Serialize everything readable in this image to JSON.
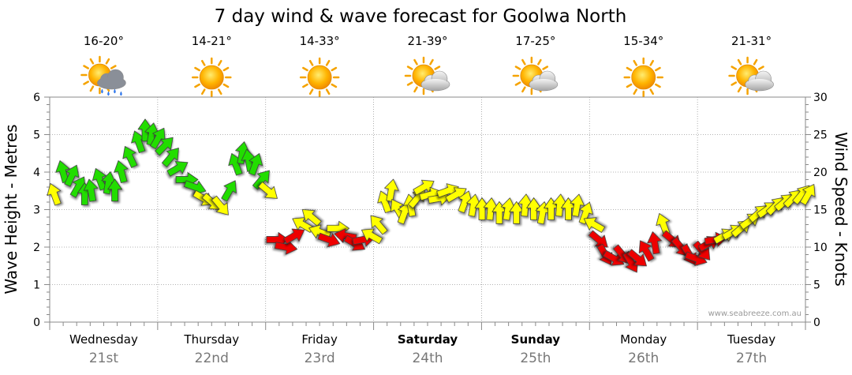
{
  "title": "7 day wind & wave forecast for Goolwa North",
  "watermark": "www.seabreeze.com.au",
  "days": [
    {
      "name": "Wednesday",
      "date": "21st",
      "temp": "16-20°",
      "icon": "sun-cloud-rain-icon",
      "bold": false
    },
    {
      "name": "Thursday",
      "date": "22nd",
      "temp": "14-21°",
      "icon": "sun-icon",
      "bold": false
    },
    {
      "name": "Friday",
      "date": "23rd",
      "temp": "14-33°",
      "icon": "sun-icon",
      "bold": false
    },
    {
      "name": "Saturday",
      "date": "24th",
      "temp": "21-39°",
      "icon": "sun-cloud-icon",
      "bold": true
    },
    {
      "name": "Sunday",
      "date": "25th",
      "temp": "17-25°",
      "icon": "sun-cloud-icon",
      "bold": true
    },
    {
      "name": "Monday",
      "date": "26th",
      "temp": "15-34°",
      "icon": "sun-icon",
      "bold": false
    },
    {
      "name": "Tuesday",
      "date": "27th",
      "temp": "21-31°",
      "icon": "sun-cloud-icon",
      "bold": false
    }
  ],
  "chart_data": {
    "type": "scatter",
    "title": "7 day wind & wave forecast for Goolwa North",
    "left_axis": {
      "label": "Wave Height - Metres",
      "min": 0,
      "max": 6,
      "ticks": [
        0,
        1,
        2,
        3,
        4,
        5,
        6
      ]
    },
    "right_axis": {
      "label": "Wind Speed - Knots",
      "min": 0,
      "max": 30,
      "ticks": [
        0,
        5,
        10,
        15,
        20,
        25,
        30
      ]
    },
    "grid": true,
    "legend": "none",
    "colors": {
      "green": "#22dd00",
      "yellow": "#ffff00",
      "red": "#ee0000"
    },
    "series": [
      {
        "name": "",
        "unit": "knots",
        "points": [
          {
            "day": 0.0,
            "speed": 17.0,
            "dir": -20,
            "color": "yellow"
          },
          {
            "day": 0.08,
            "speed": 20.0,
            "dir": -15,
            "color": "green"
          },
          {
            "day": 0.16,
            "speed": 19.5,
            "dir": 25,
            "color": "green"
          },
          {
            "day": 0.22,
            "speed": 18.0,
            "dir": 30,
            "color": "green"
          },
          {
            "day": 0.28,
            "speed": 17.0,
            "dir": 0,
            "color": "green"
          },
          {
            "day": 0.34,
            "speed": 17.5,
            "dir": -10,
            "color": "green"
          },
          {
            "day": 0.42,
            "speed": 19.0,
            "dir": -20,
            "color": "green"
          },
          {
            "day": 0.5,
            "speed": 18.5,
            "dir": 10,
            "color": "green"
          },
          {
            "day": 0.56,
            "speed": 17.5,
            "dir": 0,
            "color": "green"
          },
          {
            "day": 0.62,
            "speed": 20.0,
            "dir": -15,
            "color": "green"
          },
          {
            "day": 0.7,
            "speed": 22.0,
            "dir": -25,
            "color": "green"
          },
          {
            "day": 0.78,
            "speed": 24.0,
            "dir": -20,
            "color": "green"
          },
          {
            "day": 0.84,
            "speed": 25.5,
            "dir": 0,
            "color": "green"
          },
          {
            "day": 0.9,
            "speed": 25.0,
            "dir": 10,
            "color": "green"
          },
          {
            "day": 0.96,
            "speed": 24.5,
            "dir": 30,
            "color": "green"
          },
          {
            "day": 1.02,
            "speed": 23.5,
            "dir": 45,
            "color": "green"
          },
          {
            "day": 1.08,
            "speed": 22.0,
            "dir": 40,
            "color": "green"
          },
          {
            "day": 1.14,
            "speed": 20.5,
            "dir": 60,
            "color": "green"
          },
          {
            "day": 1.22,
            "speed": 19.0,
            "dir": 90,
            "color": "green"
          },
          {
            "day": 1.3,
            "speed": 18.0,
            "dir": 110,
            "color": "green"
          },
          {
            "day": 1.38,
            "speed": 16.5,
            "dir": 120,
            "color": "yellow"
          },
          {
            "day": 1.46,
            "speed": 16.0,
            "dir": 130,
            "color": "yellow"
          },
          {
            "day": 1.54,
            "speed": 15.5,
            "dir": 140,
            "color": "yellow"
          },
          {
            "day": 1.62,
            "speed": 17.5,
            "dir": 30,
            "color": "green"
          },
          {
            "day": 1.68,
            "speed": 21.0,
            "dir": -20,
            "color": "green"
          },
          {
            "day": 1.74,
            "speed": 22.5,
            "dir": 10,
            "color": "green"
          },
          {
            "day": 1.8,
            "speed": 21.5,
            "dir": -10,
            "color": "green"
          },
          {
            "day": 1.86,
            "speed": 21.0,
            "dir": 20,
            "color": "green"
          },
          {
            "day": 1.92,
            "speed": 19.0,
            "dir": 40,
            "color": "green"
          },
          {
            "day": 1.98,
            "speed": 17.5,
            "dir": 130,
            "color": "yellow"
          },
          {
            "day": 2.06,
            "speed": 11.0,
            "dir": 90,
            "color": "red"
          },
          {
            "day": 2.14,
            "speed": 10.0,
            "dir": 100,
            "color": "red"
          },
          {
            "day": 2.22,
            "speed": 11.5,
            "dir": 60,
            "color": "red"
          },
          {
            "day": 2.3,
            "speed": 13.0,
            "dir": -60,
            "color": "yellow"
          },
          {
            "day": 2.38,
            "speed": 14.0,
            "dir": -50,
            "color": "yellow"
          },
          {
            "day": 2.46,
            "speed": 12.0,
            "dir": -70,
            "color": "yellow"
          },
          {
            "day": 2.54,
            "speed": 11.0,
            "dir": 110,
            "color": "red"
          },
          {
            "day": 2.62,
            "speed": 12.5,
            "dir": 90,
            "color": "yellow"
          },
          {
            "day": 2.7,
            "speed": 11.5,
            "dir": -80,
            "color": "red"
          },
          {
            "day": 2.78,
            "speed": 10.5,
            "dir": 120,
            "color": "red"
          },
          {
            "day": 2.86,
            "speed": 11.0,
            "dir": 80,
            "color": "red"
          },
          {
            "day": 2.94,
            "speed": 11.5,
            "dir": -60,
            "color": "yellow"
          },
          {
            "day": 3.0,
            "speed": 13.0,
            "dir": -40,
            "color": "yellow"
          },
          {
            "day": 3.06,
            "speed": 16.0,
            "dir": -20,
            "color": "yellow"
          },
          {
            "day": 3.12,
            "speed": 17.5,
            "dir": 10,
            "color": "yellow"
          },
          {
            "day": 3.18,
            "speed": 15.0,
            "dir": -30,
            "color": "yellow"
          },
          {
            "day": 3.24,
            "speed": 14.5,
            "dir": 20,
            "color": "yellow"
          },
          {
            "day": 3.3,
            "speed": 15.5,
            "dir": -10,
            "color": "yellow"
          },
          {
            "day": 3.36,
            "speed": 16.5,
            "dir": 40,
            "color": "yellow"
          },
          {
            "day": 3.42,
            "speed": 18.0,
            "dir": 60,
            "color": "yellow"
          },
          {
            "day": 3.48,
            "speed": 17.0,
            "dir": 75,
            "color": "yellow"
          },
          {
            "day": 3.56,
            "speed": 16.5,
            "dir": 80,
            "color": "yellow"
          },
          {
            "day": 3.64,
            "speed": 17.5,
            "dir": 70,
            "color": "yellow"
          },
          {
            "day": 3.72,
            "speed": 17.0,
            "dir": 60,
            "color": "yellow"
          },
          {
            "day": 3.8,
            "speed": 16.0,
            "dir": 20,
            "color": "yellow"
          },
          {
            "day": 3.88,
            "speed": 15.5,
            "dir": 10,
            "color": "yellow"
          },
          {
            "day": 3.96,
            "speed": 15.0,
            "dir": 0,
            "color": "yellow"
          },
          {
            "day": 4.04,
            "speed": 15.0,
            "dir": 5,
            "color": "yellow"
          },
          {
            "day": 4.12,
            "speed": 14.5,
            "dir": 0,
            "color": "yellow"
          },
          {
            "day": 4.2,
            "speed": 15.0,
            "dir": 10,
            "color": "yellow"
          },
          {
            "day": 4.28,
            "speed": 14.5,
            "dir": 0,
            "color": "yellow"
          },
          {
            "day": 4.36,
            "speed": 15.5,
            "dir": 5,
            "color": "yellow"
          },
          {
            "day": 4.44,
            "speed": 15.0,
            "dir": 0,
            "color": "yellow"
          },
          {
            "day": 4.52,
            "speed": 14.5,
            "dir": 10,
            "color": "yellow"
          },
          {
            "day": 4.6,
            "speed": 15.0,
            "dir": 0,
            "color": "yellow"
          },
          {
            "day": 4.68,
            "speed": 15.5,
            "dir": 5,
            "color": "yellow"
          },
          {
            "day": 4.76,
            "speed": 15.0,
            "dir": 0,
            "color": "yellow"
          },
          {
            "day": 4.84,
            "speed": 15.5,
            "dir": 10,
            "color": "yellow"
          },
          {
            "day": 4.92,
            "speed": 14.5,
            "dir": 20,
            "color": "yellow"
          },
          {
            "day": 5.0,
            "speed": 13.0,
            "dir": -60,
            "color": "yellow"
          },
          {
            "day": 5.04,
            "speed": 11.0,
            "dir": 130,
            "color": "red"
          },
          {
            "day": 5.1,
            "speed": 9.0,
            "dir": 150,
            "color": "red"
          },
          {
            "day": 5.18,
            "speed": 8.5,
            "dir": 120,
            "color": "red"
          },
          {
            "day": 5.26,
            "speed": 9.0,
            "dir": 140,
            "color": "red"
          },
          {
            "day": 5.34,
            "speed": 8.0,
            "dir": 150,
            "color": "red"
          },
          {
            "day": 5.4,
            "speed": 8.5,
            "dir": 130,
            "color": "red"
          },
          {
            "day": 5.48,
            "speed": 9.5,
            "dir": -30,
            "color": "red"
          },
          {
            "day": 5.56,
            "speed": 10.5,
            "dir": -10,
            "color": "red"
          },
          {
            "day": 5.64,
            "speed": 13.0,
            "dir": -20,
            "color": "yellow"
          },
          {
            "day": 5.72,
            "speed": 11.0,
            "dir": 130,
            "color": "red"
          },
          {
            "day": 5.8,
            "speed": 10.0,
            "dir": 140,
            "color": "red"
          },
          {
            "day": 5.88,
            "speed": 9.0,
            "dir": 150,
            "color": "red"
          },
          {
            "day": 5.94,
            "speed": 8.5,
            "dir": 110,
            "color": "red"
          },
          {
            "day": 6.0,
            "speed": 9.5,
            "dir": 140,
            "color": "red"
          },
          {
            "day": 6.06,
            "speed": 10.5,
            "dir": 60,
            "color": "red"
          },
          {
            "day": 6.12,
            "speed": 11.0,
            "dir": 80,
            "color": "red"
          },
          {
            "day": 6.2,
            "speed": 11.5,
            "dir": 60,
            "color": "yellow"
          },
          {
            "day": 6.28,
            "speed": 12.0,
            "dir": 60,
            "color": "yellow"
          },
          {
            "day": 6.36,
            "speed": 12.5,
            "dir": 50,
            "color": "yellow"
          },
          {
            "day": 6.44,
            "speed": 13.5,
            "dir": 55,
            "color": "yellow"
          },
          {
            "day": 6.52,
            "speed": 14.5,
            "dir": 50,
            "color": "yellow"
          },
          {
            "day": 6.6,
            "speed": 15.0,
            "dir": 55,
            "color": "yellow"
          },
          {
            "day": 6.68,
            "speed": 15.5,
            "dir": 45,
            "color": "yellow"
          },
          {
            "day": 6.76,
            "speed": 16.0,
            "dir": 50,
            "color": "yellow"
          },
          {
            "day": 6.84,
            "speed": 16.5,
            "dir": 45,
            "color": "yellow"
          },
          {
            "day": 6.92,
            "speed": 17.0,
            "dir": 40,
            "color": "yellow"
          },
          {
            "day": 6.98,
            "speed": 17.0,
            "dir": 30,
            "color": "yellow"
          }
        ]
      }
    ]
  }
}
